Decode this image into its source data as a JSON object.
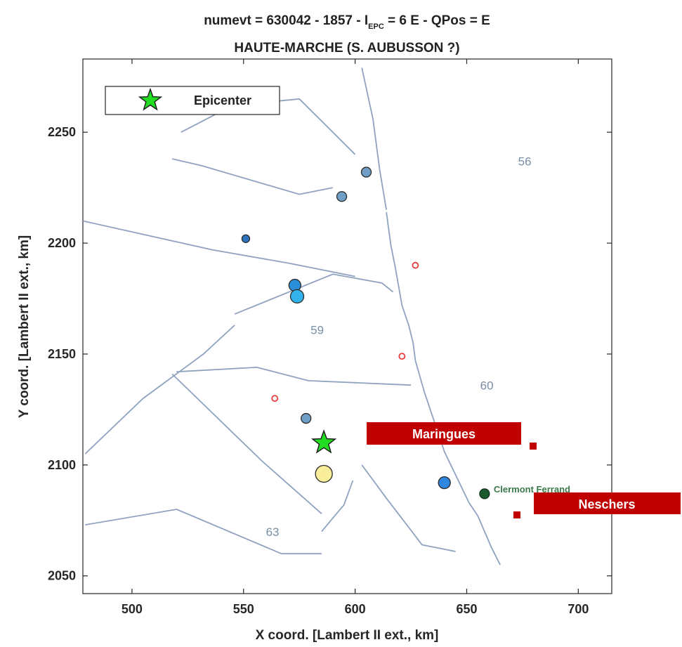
{
  "title": {
    "main_prefix": "numevt = 630042 - 1857 - I",
    "main_subscript": "EPC",
    "main_suffix": " = 6 E - QPos = E",
    "line2": "HAUTE-MARCHE (S. AUBUSSON ?)"
  },
  "chart_data": {
    "type": "scatter",
    "xlabel": "X coord. [Lambert II ext., km]",
    "ylabel": "Y coord. [Lambert II ext., km]",
    "xlim": [
      478,
      715
    ],
    "ylim": [
      2042,
      2283
    ],
    "xticks": [
      500,
      550,
      600,
      650,
      700
    ],
    "yticks": [
      2050,
      2100,
      2150,
      2200,
      2250
    ],
    "grid": false,
    "legend": {
      "placement": "top-left",
      "entries": [
        {
          "label": "Epicenter",
          "marker": "green-star"
        }
      ]
    },
    "epicenter": {
      "x": 586,
      "y": 2110,
      "color": "#22dd22"
    },
    "observations": [
      {
        "x": 605,
        "y": 2232,
        "size": 14,
        "color": "#6f9fc6"
      },
      {
        "x": 594,
        "y": 2221,
        "size": 14,
        "color": "#6f9fc6"
      },
      {
        "x": 551,
        "y": 2202,
        "size": 11,
        "color": "#2f72bf"
      },
      {
        "x": 573,
        "y": 2181,
        "size": 17,
        "color": "#2a8fd8"
      },
      {
        "x": 574,
        "y": 2176,
        "size": 19,
        "color": "#33b3ee"
      },
      {
        "x": 578,
        "y": 2121,
        "size": 14,
        "color": "#6f9fc6"
      },
      {
        "x": 586,
        "y": 2096,
        "size": 24,
        "color": "#faee9a"
      },
      {
        "x": 640,
        "y": 2092,
        "size": 17,
        "color": "#2f86df"
      }
    ],
    "unfelt": [
      {
        "x": 627,
        "y": 2190
      },
      {
        "x": 621,
        "y": 2149
      },
      {
        "x": 564,
        "y": 2130
      }
    ],
    "zones": [
      {
        "label": "56",
        "x": 676,
        "y": 2235
      },
      {
        "label": "59",
        "x": 583,
        "y": 2159
      },
      {
        "label": "60",
        "x": 659,
        "y": 2134
      },
      {
        "label": "63",
        "x": 563,
        "y": 2068
      }
    ],
    "cities": [
      {
        "name": "Clermont Ferrand",
        "x": 658,
        "y": 2087,
        "color": "#1e5a30"
      }
    ],
    "boundaries": [
      [
        [
          478,
          2210
        ],
        [
          536,
          2197
        ],
        [
          570,
          2191
        ],
        [
          600,
          2185
        ]
      ],
      [
        [
          518,
          2238
        ],
        [
          531,
          2235
        ],
        [
          575,
          2222
        ],
        [
          590,
          2225
        ]
      ],
      [
        [
          479,
          2105
        ],
        [
          505,
          2130
        ],
        [
          532,
          2150
        ],
        [
          546,
          2163
        ]
      ],
      [
        [
          520,
          2142
        ],
        [
          556,
          2144
        ],
        [
          579,
          2138
        ],
        [
          625,
          2136
        ]
      ],
      [
        [
          518,
          2141
        ],
        [
          558,
          2102
        ],
        [
          585,
          2078
        ]
      ],
      [
        [
          479,
          2073
        ],
        [
          520,
          2080
        ],
        [
          567,
          2060
        ],
        [
          585,
          2060
        ]
      ],
      [
        [
          603,
          2100
        ],
        [
          614,
          2085
        ],
        [
          630,
          2064
        ],
        [
          645,
          2061
        ]
      ],
      [
        [
          522,
          2250
        ],
        [
          545,
          2262
        ],
        [
          575,
          2265
        ],
        [
          600,
          2240
        ]
      ],
      [
        [
          585,
          2070
        ],
        [
          590,
          2076
        ],
        [
          595,
          2082
        ],
        [
          599,
          2093
        ]
      ],
      [
        [
          546,
          2168
        ],
        [
          590,
          2186
        ],
        [
          612,
          2182
        ],
        [
          617,
          2178
        ]
      ],
      [
        [
          603,
          2279
        ],
        [
          608,
          2256
        ],
        [
          611,
          2233
        ],
        [
          614,
          2215
        ]
      ],
      [
        [
          614,
          2214
        ],
        [
          616,
          2199
        ],
        [
          618,
          2189
        ],
        [
          621,
          2172
        ]
      ],
      [
        [
          621,
          2172
        ],
        [
          624,
          2163
        ],
        [
          626,
          2155
        ],
        [
          627,
          2147
        ]
      ],
      [
        [
          627,
          2147
        ],
        [
          631,
          2133
        ],
        [
          640,
          2106
        ],
        [
          651,
          2083
        ]
      ],
      [
        [
          651,
          2083
        ],
        [
          655,
          2077
        ],
        [
          661,
          2063
        ],
        [
          665,
          2055
        ]
      ]
    ]
  },
  "annotations": [
    {
      "text": "Maringues",
      "color": "#c00000"
    },
    {
      "text": "Neschers",
      "color": "#c00000"
    }
  ]
}
